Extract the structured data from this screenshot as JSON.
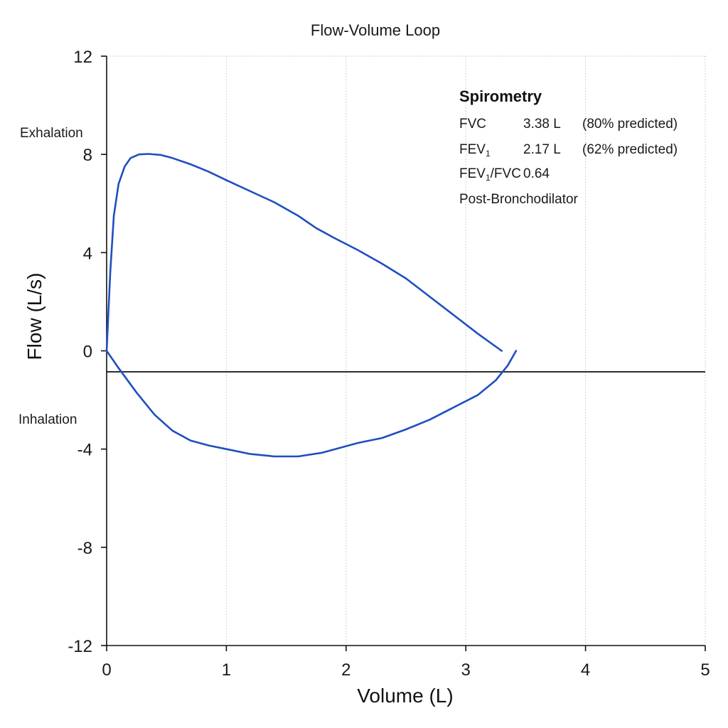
{
  "chart_data": {
    "type": "line",
    "title": "Flow-Volume Loop",
    "xlabel": "Volume (L)",
    "ylabel": "Flow (L/s)",
    "xlim": [
      0,
      5
    ],
    "ylim": [
      -12,
      12
    ],
    "xticks": [
      0,
      1,
      2,
      3,
      4,
      5
    ],
    "yticks": [
      12,
      8,
      4,
      0,
      -4,
      -8,
      -12
    ],
    "grid": true,
    "region_labels": {
      "upper": "Exhalation",
      "lower": "Inhalation"
    },
    "series": [
      {
        "segment": "expiratory",
        "color": "#1f4fbf",
        "x": [
          0,
          0.03,
          0.06,
          0.1,
          0.15,
          0.2,
          0.27,
          0.35,
          0.45,
          0.55,
          0.7,
          0.85,
          1.0,
          1.2,
          1.4,
          1.6,
          1.75,
          1.9,
          2.1,
          2.3,
          2.5,
          2.7,
          2.9,
          3.1,
          3.3
        ],
        "y": [
          0,
          3.2,
          5.5,
          6.8,
          7.5,
          7.85,
          8.0,
          8.02,
          7.98,
          7.85,
          7.6,
          7.3,
          6.95,
          6.5,
          6.05,
          5.5,
          5.0,
          4.6,
          4.1,
          3.55,
          2.95,
          2.2,
          1.45,
          0.7,
          0
        ]
      },
      {
        "segment": "inspiratory",
        "color": "#1f4fbf",
        "x": [
          0,
          0.1,
          0.25,
          0.4,
          0.55,
          0.7,
          0.85,
          1.0,
          1.2,
          1.4,
          1.6,
          1.8,
          1.95,
          2.1,
          2.3,
          2.5,
          2.7,
          2.9,
          3.1,
          3.25,
          3.35,
          3.42
        ],
        "y": [
          0,
          -0.7,
          -1.7,
          -2.6,
          -3.25,
          -3.65,
          -3.85,
          -4.0,
          -4.2,
          -4.3,
          -4.3,
          -4.15,
          -3.95,
          -3.75,
          -3.55,
          -3.2,
          -2.8,
          -2.3,
          -1.8,
          -1.2,
          -0.6,
          0
        ]
      }
    ]
  },
  "annotation": {
    "heading": "Spirometry",
    "rows": [
      {
        "name": "FVC",
        "value": "3.38 L",
        "pct": "(80% predicted)"
      },
      {
        "name": "FEV",
        "sub": "1",
        "value": "2.17 L",
        "pct": "(62% predicted)"
      },
      {
        "name_parts": [
          "FEV",
          "1",
          "/FVC"
        ],
        "value": "0.64"
      }
    ],
    "footer": "Post-Bronchodilator"
  }
}
